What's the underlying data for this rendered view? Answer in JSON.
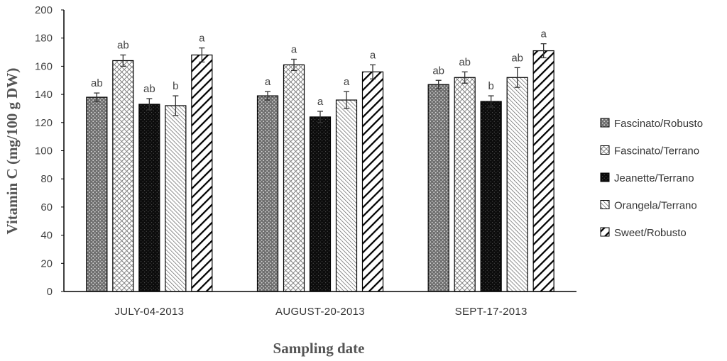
{
  "chart_data": {
    "type": "bar",
    "categories": [
      "JULY-04-2013",
      "AUGUST-20-2013",
      "SEPT-17-2013"
    ],
    "series": [
      {
        "name": "Fascinato/Robusto",
        "values": [
          138,
          139,
          147
        ],
        "errors": [
          3,
          3,
          3
        ],
        "letters": [
          "ab",
          "a",
          "ab"
        ],
        "pattern": "dots-dark"
      },
      {
        "name": "Fascinato/Terrano",
        "values": [
          164,
          161,
          152
        ],
        "errors": [
          4,
          4,
          4
        ],
        "letters": [
          "ab",
          "a",
          "ab"
        ],
        "pattern": "lattice"
      },
      {
        "name": "Jeanette/Terrano",
        "values": [
          133,
          124,
          135
        ],
        "errors": [
          4,
          4,
          4
        ],
        "letters": [
          "ab",
          "a",
          "b"
        ],
        "pattern": "dots-black"
      },
      {
        "name": "Orangela/Terrano",
        "values": [
          132,
          136,
          152
        ],
        "errors": [
          7,
          6,
          7
        ],
        "letters": [
          "b",
          "a",
          "ab"
        ],
        "pattern": "fine-diag"
      },
      {
        "name": "Sweet/Robusto",
        "values": [
          168,
          156,
          171
        ],
        "errors": [
          5,
          5,
          5
        ],
        "letters": [
          "a",
          "a",
          "a"
        ],
        "pattern": "bold-diag"
      }
    ],
    "title": "",
    "xlabel": "Sampling date",
    "ylabel": "Vitamin C  (mg/100 g DW)",
    "ylim": [
      0,
      200
    ],
    "yticks": [
      "0",
      "20",
      "40",
      "60",
      "80",
      "100",
      "120",
      "140",
      "160",
      "180",
      "200"
    ],
    "grid": false,
    "legend": "right"
  }
}
